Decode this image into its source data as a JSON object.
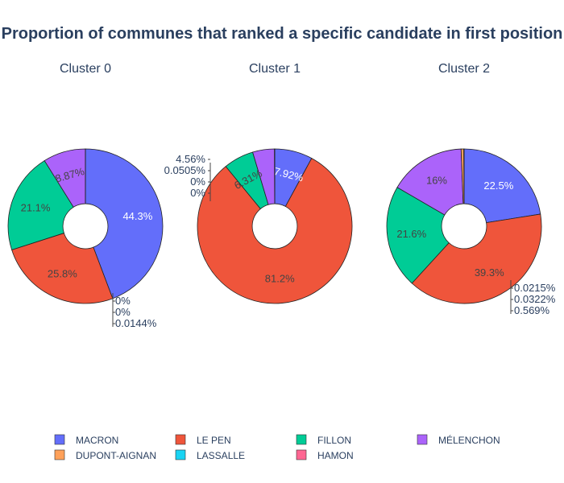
{
  "chart_data": {
    "type": "pie",
    "title": "Proportion of communes that ranked a specific candidate in first position",
    "categories": [
      "MACRON",
      "LE PEN",
      "FILLON",
      "MÉLENCHON",
      "DUPONT-AIGNAN",
      "LASSALLE",
      "HAMON"
    ],
    "colors": [
      "#636efa",
      "#EF553B",
      "#00cc96",
      "#ab63fa",
      "#FFA15A",
      "#19d3f3",
      "#FF6692"
    ],
    "hole": 0.3,
    "legend_position": "bottom",
    "charts": [
      {
        "title": "Cluster 0",
        "values": [
          44.3,
          25.8,
          21.1,
          8.87,
          0,
          0,
          0.0144
        ],
        "labels": [
          "44.3%",
          "25.8%",
          "21.1%",
          "8.87%",
          "0%",
          "0%",
          "0.0144%"
        ]
      },
      {
        "title": "Cluster 1",
        "values": [
          7.92,
          81.2,
          6.31,
          4.56,
          0.0505,
          0,
          0
        ],
        "labels": [
          "7.92%",
          "81.2%",
          "6.31%",
          "4.56%",
          "0.0505%",
          "0%",
          "0%"
        ]
      },
      {
        "title": "Cluster 2",
        "values": [
          22.5,
          39.3,
          21.6,
          16,
          0.569,
          0.0322,
          0.0215
        ],
        "labels": [
          "22.5%",
          "39.3%",
          "21.6%",
          "16%",
          "0.569%",
          "0.0322%",
          "0.0215%"
        ]
      }
    ]
  }
}
